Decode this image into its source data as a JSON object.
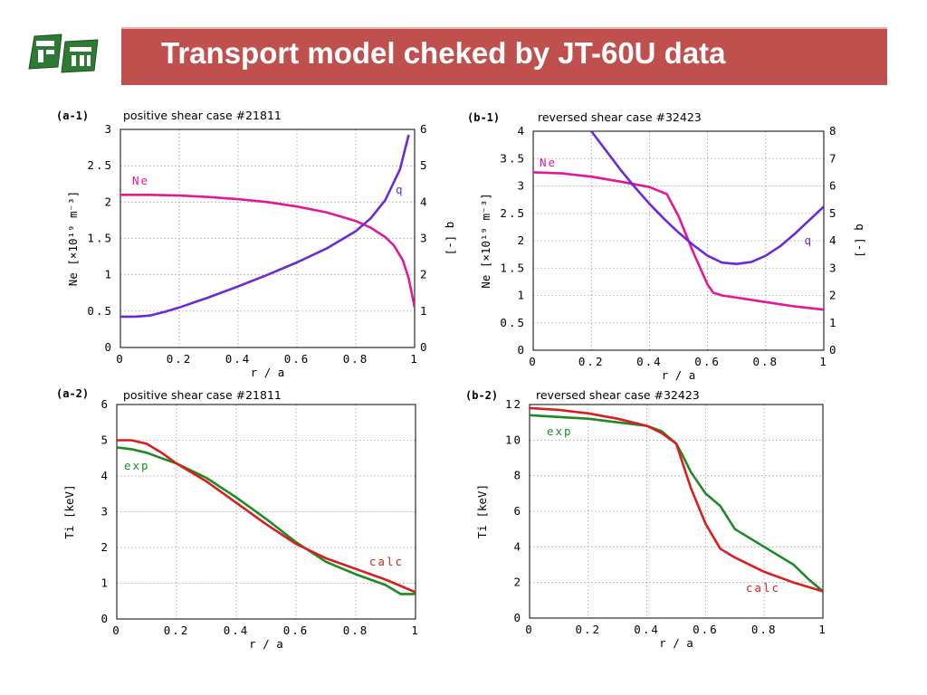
{
  "slide": {
    "title": "Transport model cheked by JT-60U data",
    "accent_color": "#c0504d",
    "logo_icon": "institution-logo-icon"
  },
  "chart_data": [
    {
      "id": "a-1",
      "label": "(a-1)",
      "type": "line",
      "title": "positive shear case #21811",
      "xlabel": "r / a",
      "ylabel": "Ne [×10¹⁹ m⁻³]",
      "y2label": "q [-]",
      "xlim": [
        0,
        1
      ],
      "ylim": [
        0,
        3
      ],
      "y2lim": [
        0,
        6
      ],
      "xticks": [
        "0",
        "0.2",
        "0.4",
        "0.6",
        "0.8",
        "1"
      ],
      "yticks": [
        "0",
        "0.5",
        "1",
        "1.5",
        "2",
        "2.5",
        "3"
      ],
      "y2ticks": [
        "0",
        "1",
        "2",
        "3",
        "4",
        "5",
        "6"
      ],
      "grid": true,
      "series": [
        {
          "name": "Ne",
          "axis": "left",
          "color": "#e0189a",
          "x": [
            0,
            0.1,
            0.2,
            0.3,
            0.4,
            0.5,
            0.6,
            0.7,
            0.8,
            0.85,
            0.9,
            0.93,
            0.96,
            0.98,
            1.0
          ],
          "y": [
            2.1,
            2.1,
            2.09,
            2.07,
            2.04,
            2.0,
            1.94,
            1.86,
            1.74,
            1.65,
            1.52,
            1.4,
            1.2,
            0.95,
            0.55
          ]
        },
        {
          "name": "q",
          "axis": "right",
          "color": "#6a2bd6",
          "x": [
            0,
            0.05,
            0.1,
            0.15,
            0.2,
            0.3,
            0.4,
            0.5,
            0.6,
            0.7,
            0.8,
            0.85,
            0.9,
            0.95,
            0.98
          ],
          "y": [
            0.85,
            0.85,
            0.88,
            0.98,
            1.1,
            1.38,
            1.68,
            2.0,
            2.34,
            2.72,
            3.2,
            3.55,
            4.05,
            4.9,
            5.85
          ]
        }
      ]
    },
    {
      "id": "b-1",
      "label": "(b-1)",
      "type": "line",
      "title": "reversed shear case #32423",
      "xlabel": "r / a",
      "ylabel": "Ne [×10¹⁹ m⁻³]",
      "y2label": "q [-]",
      "xlim": [
        0,
        1
      ],
      "ylim": [
        0,
        4
      ],
      "y2lim": [
        0,
        8
      ],
      "xticks": [
        "0",
        "0.2",
        "0.4",
        "0.6",
        "0.8",
        "1"
      ],
      "yticks": [
        "0",
        "0.5",
        "1",
        "1.5",
        "2",
        "2.5",
        "3",
        "3.5",
        "4"
      ],
      "y2ticks": [
        "0",
        "1",
        "2",
        "3",
        "4",
        "5",
        "6",
        "7",
        "8"
      ],
      "grid": true,
      "series": [
        {
          "name": "Ne",
          "axis": "left",
          "color": "#e0189a",
          "x": [
            0,
            0.1,
            0.2,
            0.3,
            0.4,
            0.46,
            0.5,
            0.55,
            0.6,
            0.62,
            0.65,
            0.7,
            0.8,
            0.9,
            1.0
          ],
          "y": [
            3.25,
            3.23,
            3.17,
            3.08,
            2.98,
            2.85,
            2.45,
            1.8,
            1.2,
            1.05,
            1.0,
            0.96,
            0.88,
            0.8,
            0.74
          ]
        },
        {
          "name": "q",
          "axis": "right",
          "color": "#6a2bd6",
          "x": [
            0.2,
            0.25,
            0.3,
            0.35,
            0.4,
            0.45,
            0.5,
            0.55,
            0.6,
            0.65,
            0.7,
            0.75,
            0.8,
            0.85,
            0.9,
            0.95,
            1.0
          ],
          "y": [
            8.0,
            7.3,
            6.6,
            5.95,
            5.35,
            4.8,
            4.3,
            3.85,
            3.45,
            3.2,
            3.15,
            3.22,
            3.45,
            3.8,
            4.25,
            4.75,
            5.25
          ]
        }
      ]
    },
    {
      "id": "a-2",
      "label": "(a-2)",
      "type": "line",
      "title": "positive shear case #21811",
      "xlabel": "r / a",
      "ylabel": "Ti [keV]",
      "xlim": [
        0,
        1
      ],
      "ylim": [
        0,
        6
      ],
      "xticks": [
        "0",
        "0.2",
        "0.4",
        "0.6",
        "0.8",
        "1"
      ],
      "yticks": [
        "0",
        "1",
        "2",
        "3",
        "4",
        "5",
        "6"
      ],
      "grid": true,
      "series": [
        {
          "name": "exp",
          "color": "#1e8a24",
          "x": [
            0,
            0.05,
            0.1,
            0.15,
            0.2,
            0.3,
            0.4,
            0.5,
            0.6,
            0.7,
            0.8,
            0.9,
            0.95,
            1.0
          ],
          "y": [
            4.8,
            4.75,
            4.65,
            4.5,
            4.35,
            3.95,
            3.4,
            2.8,
            2.15,
            1.6,
            1.25,
            0.95,
            0.7,
            0.7
          ]
        },
        {
          "name": "calc",
          "color": "#d81e1e",
          "x": [
            0,
            0.05,
            0.1,
            0.15,
            0.2,
            0.3,
            0.4,
            0.5,
            0.6,
            0.7,
            0.8,
            0.9,
            1.0
          ],
          "y": [
            5.0,
            5.0,
            4.9,
            4.65,
            4.35,
            3.85,
            3.25,
            2.65,
            2.1,
            1.7,
            1.4,
            1.1,
            0.75
          ]
        }
      ]
    },
    {
      "id": "b-2",
      "label": "(b-2)",
      "type": "line",
      "title": "reversed shear case #32423",
      "xlabel": "r / a",
      "ylabel": "Ti [keV]",
      "xlim": [
        0,
        1
      ],
      "ylim": [
        0,
        12
      ],
      "xticks": [
        "0",
        "0.2",
        "0.4",
        "0.6",
        "0.8",
        "1"
      ],
      "yticks": [
        "0",
        "2",
        "4",
        "6",
        "8",
        "10",
        "12"
      ],
      "grid": true,
      "series": [
        {
          "name": "exp",
          "color": "#1e8a24",
          "x": [
            0,
            0.1,
            0.2,
            0.3,
            0.4,
            0.45,
            0.5,
            0.52,
            0.55,
            0.6,
            0.65,
            0.7,
            0.8,
            0.9,
            0.95,
            1.0
          ],
          "y": [
            11.4,
            11.3,
            11.2,
            11.0,
            10.8,
            10.5,
            9.8,
            9.2,
            8.2,
            7.0,
            6.3,
            5.0,
            4.0,
            3.0,
            2.2,
            1.5
          ]
        },
        {
          "name": "calc",
          "color": "#d81e1e",
          "x": [
            0,
            0.1,
            0.2,
            0.3,
            0.4,
            0.45,
            0.5,
            0.55,
            0.6,
            0.65,
            0.7,
            0.8,
            0.9,
            1.0
          ],
          "y": [
            11.8,
            11.7,
            11.5,
            11.2,
            10.8,
            10.4,
            9.8,
            7.3,
            5.3,
            3.9,
            3.4,
            2.6,
            2.0,
            1.5
          ]
        }
      ]
    }
  ]
}
